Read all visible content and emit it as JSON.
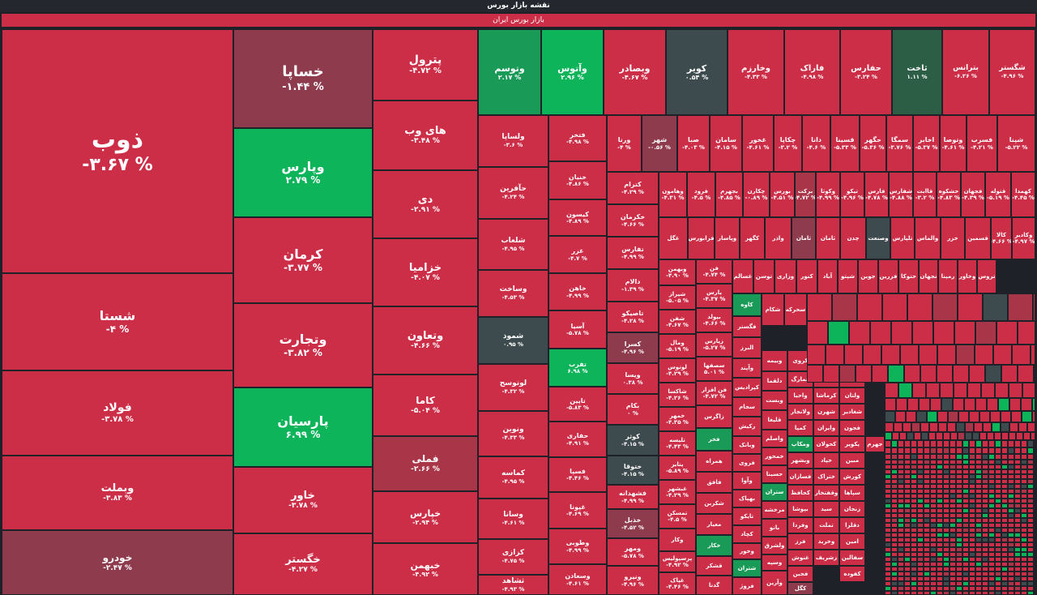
{
  "header": {
    "title": "نقشه بازار بورس",
    "subtitle": "بازار بورس ایران"
  },
  "colors": {
    "loss": "#cc2e48",
    "loss_soft": "#c8344e",
    "mild_loss": "#a83548",
    "muted": "#8f3b4e",
    "gain": "#0db45a",
    "gain_soft": "#1a9a57",
    "neutral": "#3e4b4e",
    "dark": "#2b5e45"
  },
  "tiles": [
    {
      "n": "ذوب",
      "v": "-۳.۶۷ %"
    },
    {
      "n": "شستا",
      "v": "-۴ %"
    },
    {
      "n": "فولاد",
      "v": "-۳.۷۸ %"
    },
    {
      "n": "وبملت",
      "v": "-۳.۸۳ %"
    },
    {
      "n": "خودرو",
      "v": "-۲.۴۷ %"
    },
    {
      "n": "خساپا",
      "v": "-۱.۴۴ %"
    },
    {
      "n": "وپارس",
      "v": "۲.۷۹ %"
    },
    {
      "n": "کرمان",
      "v": "-۳.۷۷ %"
    },
    {
      "n": "وتجارت",
      "v": "-۳.۸۲ %"
    },
    {
      "n": "پارسیان",
      "v": "۶.۹۹ %"
    },
    {
      "n": "خاور",
      "v": "-۳.۷۸ %"
    },
    {
      "n": "خگستر",
      "v": "-۴.۲۷ %"
    },
    {
      "n": "پترول",
      "v": "-۴.۷۲ %"
    },
    {
      "n": "های وب",
      "v": "-۳.۴۸ %"
    },
    {
      "n": "دی",
      "v": "-۲.۹۱ %"
    },
    {
      "n": "خزامیا",
      "v": "-۴.۰۷ %"
    },
    {
      "n": "وتعاون",
      "v": "-۴.۶۶ %"
    },
    {
      "n": "کاما",
      "v": "-۵.۰۴ %"
    },
    {
      "n": "فملی",
      "v": "-۲.۶۶ %"
    },
    {
      "n": "خپارس",
      "v": "-۲.۹۴ %"
    },
    {
      "n": "خبهمن",
      "v": "-۴.۹۲ %"
    },
    {
      "n": "وتوسم",
      "v": "۲.۱۷ %"
    },
    {
      "n": "وآتوس",
      "v": "۲.۹۶ %"
    },
    {
      "n": "وبصادر",
      "v": "-۴.۶۷ %"
    },
    {
      "n": "کویر",
      "v": "۰.۵۴ %"
    },
    {
      "n": "وخارزم",
      "v": "-۴.۳۳ %"
    },
    {
      "n": "فاراک",
      "v": "-۴.۹۸ %"
    },
    {
      "n": "حفارس",
      "v": "-۳.۲۴ %"
    },
    {
      "n": "ثاخت",
      "v": "۱.۱۱ %"
    },
    {
      "n": "بترانس",
      "v": "-۶.۲۶ %"
    },
    {
      "n": "شگستر",
      "v": "-۴.۹۶ %"
    },
    {
      "n": "ولساپا",
      "v": "-۳.۶ %"
    },
    {
      "n": "حآفرین",
      "v": "-۴.۲۴ %"
    },
    {
      "n": "شلعاب",
      "v": "-۴.۹۵ %"
    },
    {
      "n": "وساخت",
      "v": "-۴.۵۳ %"
    },
    {
      "n": "شموذ",
      "v": "۰.۹۵ %"
    },
    {
      "n": "لوتوسح",
      "v": "-۴.۳۲ %"
    },
    {
      "n": "ونوین",
      "v": "-۴.۳۳ %"
    },
    {
      "n": "کماسه",
      "v": "-۴.۹۵ %"
    },
    {
      "n": "وسانا",
      "v": "-۴.۶۱ %"
    },
    {
      "n": "کزازی",
      "v": "-۴.۷۵ %"
    },
    {
      "n": "ثشاهد",
      "v": "-۴.۹۳ %"
    },
    {
      "n": "فتخر",
      "v": "-۴.۹۸ %"
    },
    {
      "n": "خنیان",
      "v": "-۴.۸۶ %"
    },
    {
      "n": "کیسون",
      "v": "-۴.۸۹ %"
    },
    {
      "n": "غزر",
      "v": "-۴.۷ %"
    },
    {
      "n": "خاهن",
      "v": "-۴.۹۹ %"
    },
    {
      "n": "آسیا",
      "v": "-۵.۷۸ %"
    },
    {
      "n": "تفرب",
      "v": "۶.۹۸ %"
    },
    {
      "n": "تاپین",
      "v": "-۵.۸۳ %"
    },
    {
      "n": "حفاری",
      "v": "-۴.۹۱ %"
    },
    {
      "n": "فسپا",
      "v": "-۴.۴۶ %"
    },
    {
      "n": "غپونا",
      "v": "-۴.۶۹ %"
    },
    {
      "n": "وطوبی",
      "v": "-۴.۹۹ %"
    },
    {
      "n": "وسعادن",
      "v": "-۴.۶۱ %"
    },
    {
      "n": "ورنا",
      "v": "-۴ %"
    },
    {
      "n": "شهر",
      "v": "-۰.۵۶ %"
    },
    {
      "n": "صبا",
      "v": "-۴.۰۳ %"
    },
    {
      "n": "سامان",
      "v": "-۴.۱۵ %"
    },
    {
      "n": "غخور",
      "v": "-۴.۶۱ %"
    },
    {
      "n": "چکاپا",
      "v": "-۳.۲ %"
    },
    {
      "n": "دانا",
      "v": "-۴.۶ %"
    },
    {
      "n": "قسینا",
      "v": "-۵.۳۳ %"
    },
    {
      "n": "حگهر",
      "v": "-۵.۳۶ %"
    },
    {
      "n": "سمگا",
      "v": "-۳.۷۶ %"
    },
    {
      "n": "اخابر",
      "v": "-۵.۳۷ %"
    },
    {
      "n": "وتوصا",
      "v": "-۴.۶۱ %"
    },
    {
      "n": "فسرب",
      "v": "-۴.۲۱ %"
    },
    {
      "n": "شپنا",
      "v": "-۵.۲۲ %"
    },
    {
      "n": "کترام",
      "v": "-۴.۲۹ %"
    },
    {
      "n": "وهامون",
      "v": "-۴.۳۱ %"
    },
    {
      "n": "فرود",
      "v": "-۴.۵ %"
    },
    {
      "n": "بجهرم",
      "v": "-۴.۸۵ %"
    },
    {
      "n": "چکارن",
      "v": "-۰.۸۹ %"
    },
    {
      "n": "بورس",
      "v": "-۴.۵۱ %"
    },
    {
      "n": "برکت",
      "v": "-۴.۷۲ %"
    },
    {
      "n": "وکوثا",
      "v": "-۴.۹۹ %"
    },
    {
      "n": "تیکو",
      "v": "-۴.۹۶ %"
    },
    {
      "n": "فارس",
      "v": "-۴.۷۸ %"
    },
    {
      "n": "شفارس",
      "v": "-۴.۸۸ %"
    },
    {
      "n": "قاابت",
      "v": "-۳.۲ %"
    },
    {
      "n": "حشکوه",
      "v": "-۴.۸۳ %"
    },
    {
      "n": "فجهان",
      "v": "-۴.۳۹ %"
    },
    {
      "n": "قتوله",
      "v": "-۵.۱۹ %"
    },
    {
      "n": "کهمدا",
      "v": "-۴.۴۵ %"
    },
    {
      "n": "خکرمان",
      "v": "-۴.۶۶ %"
    },
    {
      "n": "تفارس",
      "v": "-۴.۹۹ %"
    },
    {
      "n": "غگل",
      "v": ""
    },
    {
      "n": "فرابورس",
      "v": ""
    },
    {
      "n": "وپاسار",
      "v": ""
    },
    {
      "n": "کگهر",
      "v": ""
    },
    {
      "n": "واذر",
      "v": ""
    },
    {
      "n": "ثامان",
      "v": ""
    },
    {
      "n": "ثامان",
      "v": ""
    },
    {
      "n": "چدن",
      "v": ""
    },
    {
      "n": "وصنعت",
      "v": ""
    },
    {
      "n": "تلپارس",
      "v": ""
    },
    {
      "n": "والماس",
      "v": ""
    },
    {
      "n": "خزر",
      "v": ""
    },
    {
      "n": "قسمین",
      "v": ""
    },
    {
      "n": "کالا",
      "v": "-۴.۶۶ %"
    },
    {
      "n": "وکادیر",
      "v": "-۴.۹۷ %"
    },
    {
      "n": "دالام",
      "v": "-۱.۳۹ %"
    },
    {
      "n": "تاصیکو",
      "v": "-۴.۲۸ %"
    },
    {
      "n": "کسرا",
      "v": "-۴.۹۶ %"
    },
    {
      "n": "ویسا",
      "v": "۰.۳۸ %"
    },
    {
      "n": "بکام",
      "v": "۰ %"
    },
    {
      "n": "کوثر",
      "v": "-۴.۱۵ %"
    },
    {
      "n": "ختوقا",
      "v": "-۴.۱۵ %"
    },
    {
      "n": "فشهدانه",
      "v": "-۴.۹۹ %"
    },
    {
      "n": "خذبل",
      "v": "-۴.۵۲ %"
    },
    {
      "n": "ومهر",
      "v": "-۵.۷۸ %"
    },
    {
      "n": "ونیرو",
      "v": "-۴.۹۶ %"
    },
    {
      "n": "وبهمن",
      "v": "-۴.۹۰ %"
    },
    {
      "n": "شیراز",
      "v": "-۵.۰۵ %"
    },
    {
      "n": "شفن",
      "v": "-۴.۶۷ %"
    },
    {
      "n": "ومال",
      "v": "-۵.۱۹ %"
    },
    {
      "n": "لوتوس",
      "v": "-۴.۲۹ %"
    },
    {
      "n": "شاکسا",
      "v": "-۴.۲۶ %"
    },
    {
      "n": "خمهر",
      "v": "-۴.۳۵ %"
    },
    {
      "n": "تلیسه",
      "v": "-۴.۴۳ %"
    },
    {
      "n": "پتایر",
      "v": "-۵.۸۹ %"
    },
    {
      "n": "غبشهر",
      "v": "-۴.۲۹ %"
    },
    {
      "n": "تمسکن",
      "v": "-۴.۵ %"
    },
    {
      "n": "وکار",
      "v": ""
    },
    {
      "n": "پرسپولیس",
      "v": "-۴.۹۲ %"
    },
    {
      "n": "غپاک",
      "v": "-۴.۴۶ %"
    },
    {
      "n": "فن",
      "v": "-۴.۷۴ %"
    },
    {
      "n": "پارس",
      "v": "-۴.۳۷ %"
    },
    {
      "n": "بپولد",
      "v": "-۴.۶۶ %"
    },
    {
      "n": "زپارس",
      "v": "-۵.۲۷ %"
    },
    {
      "n": "سصفها",
      "v": "۵.۰۱ %"
    },
    {
      "n": "فن افزار",
      "v": "-۴.۷۲ %"
    },
    {
      "n": "زاگرس",
      "v": ""
    },
    {
      "n": "فخر",
      "v": ""
    },
    {
      "n": "همراه",
      "v": ""
    },
    {
      "n": "فافق",
      "v": ""
    },
    {
      "n": "شکربن",
      "v": ""
    },
    {
      "n": "معیار",
      "v": ""
    },
    {
      "n": "خکار",
      "v": ""
    },
    {
      "n": "قشکر",
      "v": ""
    },
    {
      "n": "گدنا",
      "v": ""
    },
    {
      "n": "غسالم",
      "v": ""
    },
    {
      "n": "کاوه",
      "v": ""
    },
    {
      "n": "فگستر",
      "v": ""
    },
    {
      "n": "البرز",
      "v": ""
    },
    {
      "n": "وآپند",
      "v": ""
    },
    {
      "n": "کپرادیس",
      "v": ""
    },
    {
      "n": "سجام",
      "v": ""
    },
    {
      "n": "رکیش",
      "v": ""
    },
    {
      "n": "وبانک",
      "v": ""
    },
    {
      "n": "فروی",
      "v": ""
    },
    {
      "n": "وآوا",
      "v": ""
    },
    {
      "n": "بهپاک",
      "v": ""
    },
    {
      "n": "تایکو",
      "v": ""
    },
    {
      "n": "کچاد",
      "v": ""
    },
    {
      "n": "وخور",
      "v": ""
    },
    {
      "n": "شتران",
      "v": ""
    },
    {
      "n": "فروژ",
      "v": ""
    },
    {
      "n": "توسن",
      "v": ""
    },
    {
      "n": "وزاری",
      "v": ""
    },
    {
      "n": "کنور",
      "v": ""
    },
    {
      "n": "آباد",
      "v": ""
    },
    {
      "n": "شپتو",
      "v": ""
    },
    {
      "n": "جوین",
      "v": ""
    },
    {
      "n": "فزرین",
      "v": ""
    },
    {
      "n": "حتوکا",
      "v": ""
    },
    {
      "n": "نجهان",
      "v": ""
    },
    {
      "n": "رمپنا",
      "v": ""
    },
    {
      "n": "وخاور",
      "v": ""
    },
    {
      "n": "تروس",
      "v": ""
    },
    {
      "n": "سحرکه",
      "v": ""
    },
    {
      "n": "شکام",
      "v": ""
    },
    {
      "n": "وبیمه",
      "v": ""
    },
    {
      "n": "دلقما",
      "v": ""
    },
    {
      "n": "وبست",
      "v": ""
    },
    {
      "n": "قلیغا",
      "v": ""
    },
    {
      "n": "واصلم",
      "v": ""
    },
    {
      "n": "خمحور",
      "v": ""
    },
    {
      "n": "حسینا",
      "v": ""
    },
    {
      "n": "ستران",
      "v": ""
    },
    {
      "n": "مرخشه",
      "v": ""
    },
    {
      "n": "بانو",
      "v": ""
    },
    {
      "n": "ولشرق",
      "v": ""
    },
    {
      "n": "وسپه",
      "v": ""
    },
    {
      "n": "وآرین",
      "v": ""
    },
    {
      "n": "کروی",
      "v": ""
    },
    {
      "n": "غمارگ",
      "v": ""
    },
    {
      "n": "واحیا",
      "v": ""
    },
    {
      "n": "ولانجار",
      "v": ""
    },
    {
      "n": "کمپا",
      "v": ""
    },
    {
      "n": "ومکاپ",
      "v": ""
    },
    {
      "n": "وبشهر",
      "v": ""
    },
    {
      "n": "فسازان",
      "v": ""
    },
    {
      "n": "کحافظ",
      "v": ""
    },
    {
      "n": "بپوشا",
      "v": ""
    },
    {
      "n": "وفردا",
      "v": ""
    },
    {
      "n": "فرز",
      "v": ""
    },
    {
      "n": "غنوش",
      "v": ""
    },
    {
      "n": "فجین",
      "v": ""
    },
    {
      "n": "کگل",
      "v": ""
    },
    {
      "n": "کاذر",
      "v": ""
    },
    {
      "n": "کرماشا",
      "v": ""
    },
    {
      "n": "شهرن",
      "v": ""
    },
    {
      "n": "وایران",
      "v": ""
    },
    {
      "n": "کحولان",
      "v": ""
    },
    {
      "n": "خپاد",
      "v": ""
    },
    {
      "n": "ختراک",
      "v": ""
    },
    {
      "n": "وقفتخار",
      "v": ""
    },
    {
      "n": "سید",
      "v": ""
    },
    {
      "n": "تملت",
      "v": ""
    },
    {
      "n": "وخرید",
      "v": ""
    },
    {
      "n": "زشریف",
      "v": ""
    },
    {
      "n": "گلستان",
      "v": ""
    },
    {
      "n": "ولتان",
      "v": ""
    },
    {
      "n": "شغادیر",
      "v": ""
    },
    {
      "n": "بایرو",
      "v": ""
    },
    {
      "n": "پکویر",
      "v": ""
    },
    {
      "n": "مبین",
      "v": ""
    },
    {
      "n": "کورش",
      "v": ""
    },
    {
      "n": "سپاها",
      "v": ""
    },
    {
      "n": "زنجان",
      "v": ""
    },
    {
      "n": "دقلرا",
      "v": ""
    },
    {
      "n": "امین",
      "v": ""
    },
    {
      "n": "سفالین",
      "v": ""
    },
    {
      "n": "کفوده",
      "v": ""
    },
    {
      "n": "فجون",
      "v": ""
    },
    {
      "n": "جهرم",
      "v": ""
    }
  ]
}
